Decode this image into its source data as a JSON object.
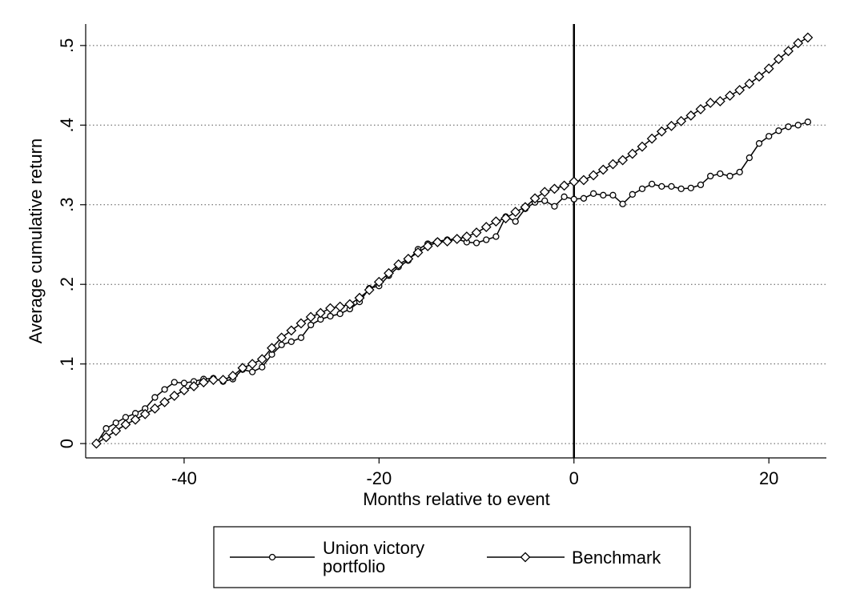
{
  "chart_data": {
    "type": "line",
    "x_label": "Months relative to event",
    "y_label": "Average cumulative return",
    "x": [
      -49,
      -48,
      -47,
      -46,
      -45,
      -44,
      -43,
      -42,
      -41,
      -40,
      -39,
      -38,
      -37,
      -36,
      -35,
      -34,
      -33,
      -32,
      -31,
      -30,
      -29,
      -28,
      -27,
      -26,
      -25,
      -24,
      -23,
      -22,
      -21,
      -20,
      -19,
      -18,
      -17,
      -16,
      -15,
      -14,
      -13,
      -12,
      -11,
      -10,
      -9,
      -8,
      -7,
      -6,
      -5,
      -4,
      -3,
      -2,
      -1,
      0,
      1,
      2,
      3,
      4,
      5,
      6,
      7,
      8,
      9,
      10,
      11,
      12,
      13,
      14,
      15,
      16,
      17,
      18,
      19,
      20,
      21,
      22,
      23,
      24
    ],
    "series": [
      {
        "name": "Union victory portfolio",
        "color": "#000000",
        "marker": "circle",
        "values": [
          0,
          0.019,
          0.026,
          0.033,
          0.038,
          0.044,
          0.058,
          0.068,
          0.077,
          0.076,
          0.078,
          0.081,
          0.082,
          0.078,
          0.081,
          0.093,
          0.09,
          0.096,
          0.112,
          0.124,
          0.128,
          0.133,
          0.149,
          0.156,
          0.16,
          0.163,
          0.169,
          0.178,
          0.195,
          0.198,
          0.211,
          0.222,
          0.23,
          0.244,
          0.251,
          0.254,
          0.256,
          0.257,
          0.253,
          0.252,
          0.256,
          0.26,
          0.285,
          0.279,
          0.295,
          0.303,
          0.305,
          0.298,
          0.31,
          0.307,
          0.308,
          0.314,
          0.312,
          0.312,
          0.301,
          0.313,
          0.32,
          0.326,
          0.323,
          0.323,
          0.32,
          0.321,
          0.325,
          0.336,
          0.339,
          0.336,
          0.341,
          0.359,
          0.377,
          0.386,
          0.393,
          0.398,
          0.4,
          0.404
        ]
      },
      {
        "name": "Benchmark",
        "color": "#000000",
        "marker": "diamond",
        "values": [
          0,
          0.008,
          0.016,
          0.024,
          0.03,
          0.037,
          0.044,
          0.052,
          0.06,
          0.067,
          0.072,
          0.077,
          0.08,
          0.08,
          0.085,
          0.095,
          0.1,
          0.106,
          0.12,
          0.133,
          0.142,
          0.151,
          0.159,
          0.164,
          0.17,
          0.172,
          0.175,
          0.183,
          0.193,
          0.203,
          0.214,
          0.225,
          0.232,
          0.24,
          0.248,
          0.253,
          0.254,
          0.257,
          0.26,
          0.265,
          0.272,
          0.279,
          0.283,
          0.291,
          0.297,
          0.308,
          0.316,
          0.32,
          0.324,
          0.329,
          0.331,
          0.337,
          0.344,
          0.351,
          0.356,
          0.364,
          0.373,
          0.383,
          0.392,
          0.399,
          0.405,
          0.412,
          0.42,
          0.428,
          0.43,
          0.437,
          0.444,
          0.452,
          0.461,
          0.471,
          0.483,
          0.493,
          0.503,
          0.51
        ]
      }
    ],
    "xlim": [
      -50.1,
      25.9
    ],
    "xticks": [
      -40,
      -20,
      0,
      20
    ],
    "ylim": [
      -0.018,
      0.527
    ],
    "yticks": [
      0,
      {
        "value": 0.1,
        "label": ".1"
      },
      {
        "value": 0.2,
        "label": ".2"
      },
      {
        "value": 0.3,
        "label": ".3"
      },
      {
        "value": 0.4,
        "label": ".4"
      },
      {
        "value": 0.5,
        "label": ".5"
      }
    ],
    "grid": true,
    "x_reference_line": 0,
    "legend_position": "bottom"
  }
}
